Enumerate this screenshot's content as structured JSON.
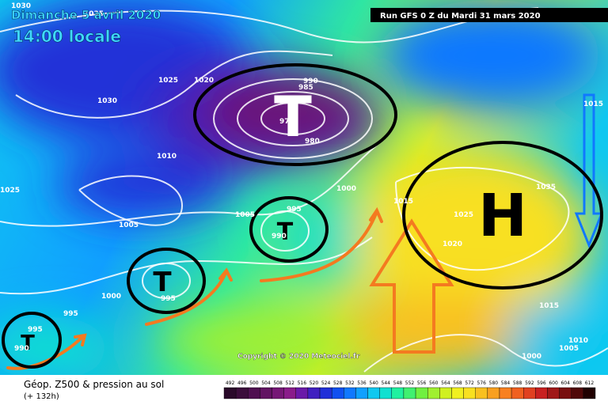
{
  "header": {
    "date": "Dimanche 5 avril 2020",
    "time": "14:00 locale",
    "run": "Run GFS 0 Z du Mardi 31 mars 2020"
  },
  "map": {
    "centers": [
      "T",
      "T",
      "T",
      "T",
      "H"
    ],
    "isobar_labels": [
      "1035",
      "1030",
      "1025",
      "1020",
      "1010",
      "1005",
      "1005",
      "1000",
      "1000",
      "995",
      "995",
      "995",
      "990",
      "985",
      "975",
      "980",
      "995",
      "990",
      "1015",
      "1025",
      "1020",
      "1035",
      "1015",
      "1015",
      "1000",
      "1005",
      "1010",
      "1025",
      "990",
      "1030"
    ],
    "copyright": "Copyright © 2020 Meteociel.fr"
  },
  "footer": {
    "title": "Géop. Z500 & pression au sol",
    "lead": "(+ 132h)"
  },
  "scale": {
    "labels": [
      "492",
      "496",
      "500",
      "504",
      "508",
      "512",
      "516",
      "520",
      "524",
      "528",
      "532",
      "536",
      "540",
      "544",
      "548",
      "552",
      "556",
      "560",
      "564",
      "568",
      "572",
      "576",
      "580",
      "584",
      "588",
      "592",
      "596",
      "600",
      "604",
      "608",
      "612"
    ],
    "colors": [
      "#2a0a2a",
      "#3b0d3b",
      "#4f1050",
      "#621462",
      "#761876",
      "#8a1c8a",
      "#6a1aa8",
      "#4020c0",
      "#2030d8",
      "#1050f0",
      "#1078ff",
      "#10a0ff",
      "#10c8f0",
      "#10e0d0",
      "#20f0a0",
      "#40f070",
      "#70f040",
      "#a0f030",
      "#d0f020",
      "#f0f020",
      "#f8e020",
      "#f8c020",
      "#f8a020",
      "#f88020",
      "#f06020",
      "#e04020",
      "#c82020",
      "#a01818",
      "#781010",
      "#500808",
      "#200000"
    ]
  }
}
